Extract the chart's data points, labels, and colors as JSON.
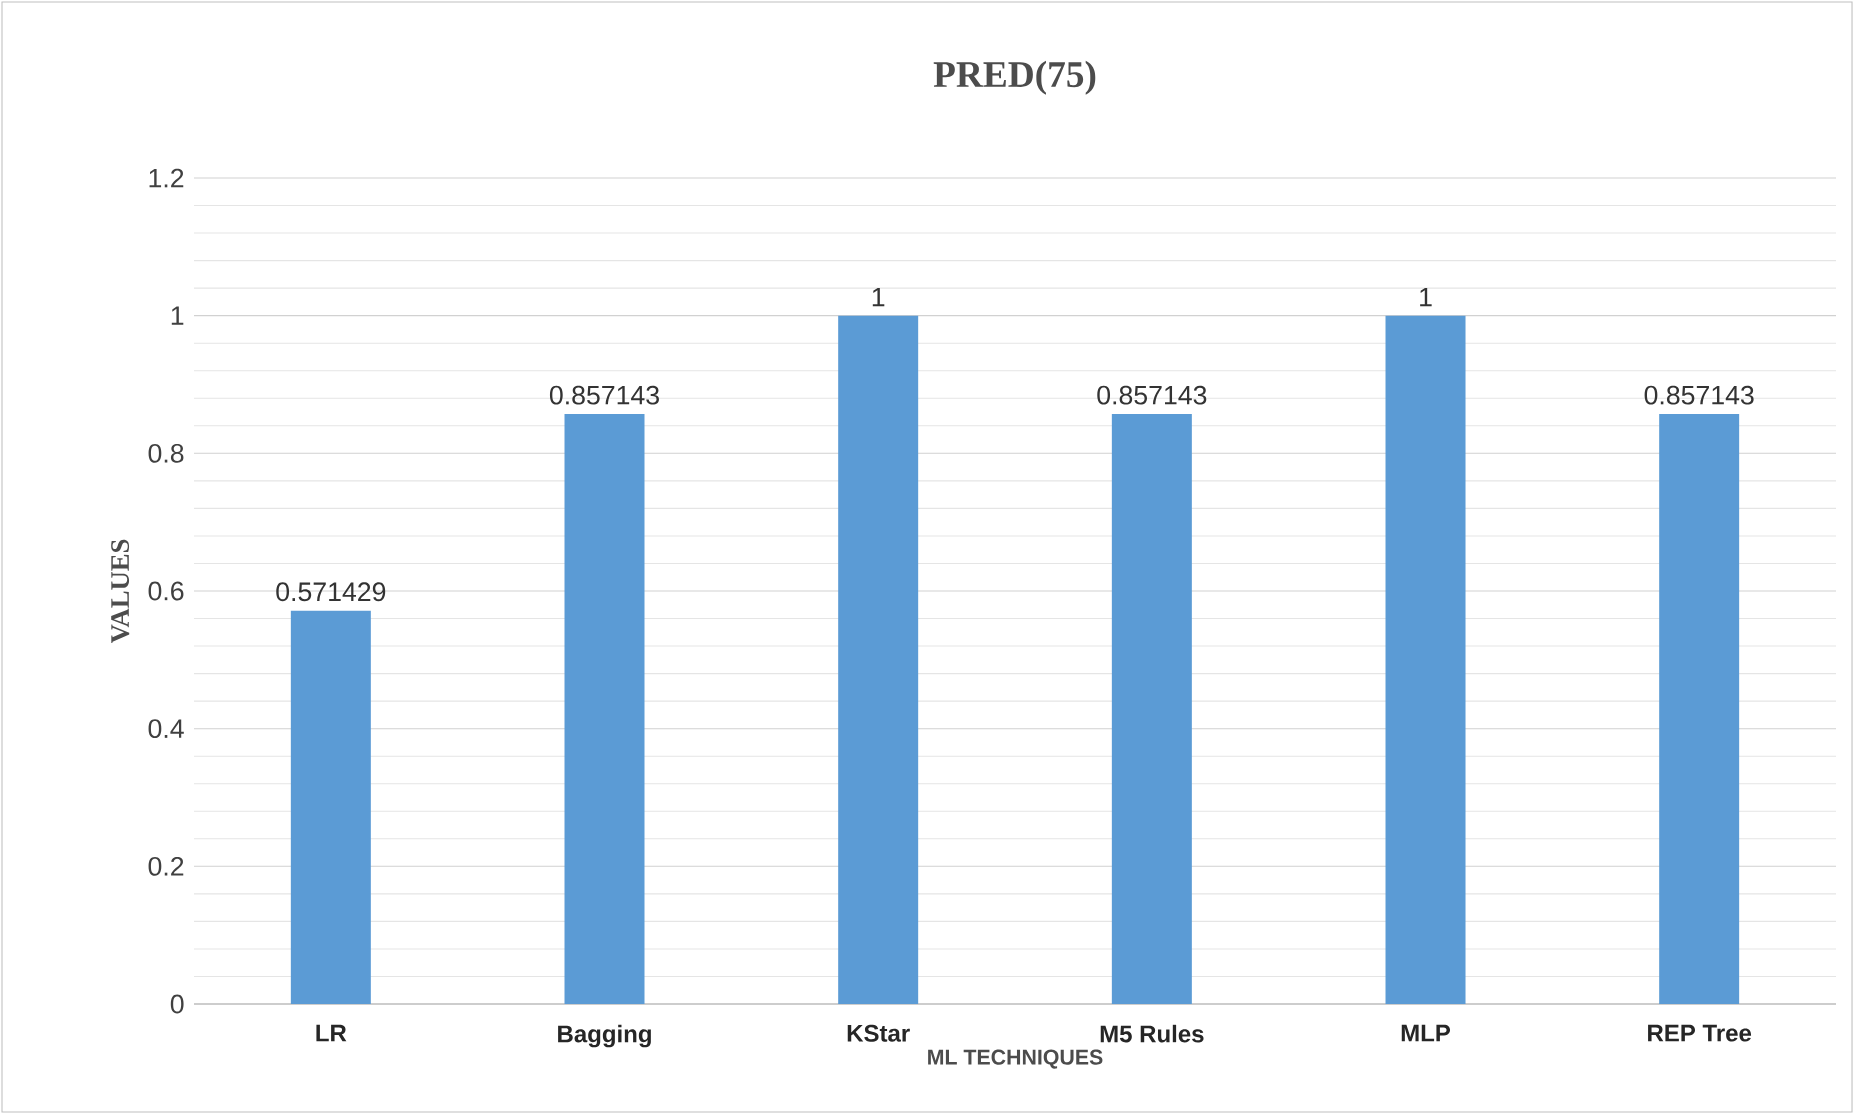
{
  "chart_data": {
    "type": "bar",
    "title": "PRED(75)",
    "xlabel": "ML TECHNIQUES",
    "ylabel": "VALUES",
    "categories": [
      "LR",
      "Bagging",
      "KStar",
      "M5 Rules",
      "MLP",
      "REP Tree"
    ],
    "values": [
      0.571429,
      0.857143,
      1,
      0.857143,
      1,
      0.857143
    ],
    "color": "#5b9bd5",
    "ylim": [
      0,
      1.2
    ],
    "yticks": [
      0,
      0.2,
      0.4,
      0.6,
      0.8,
      1,
      1.2
    ],
    "grid": "y",
    "data_labels": true
  }
}
